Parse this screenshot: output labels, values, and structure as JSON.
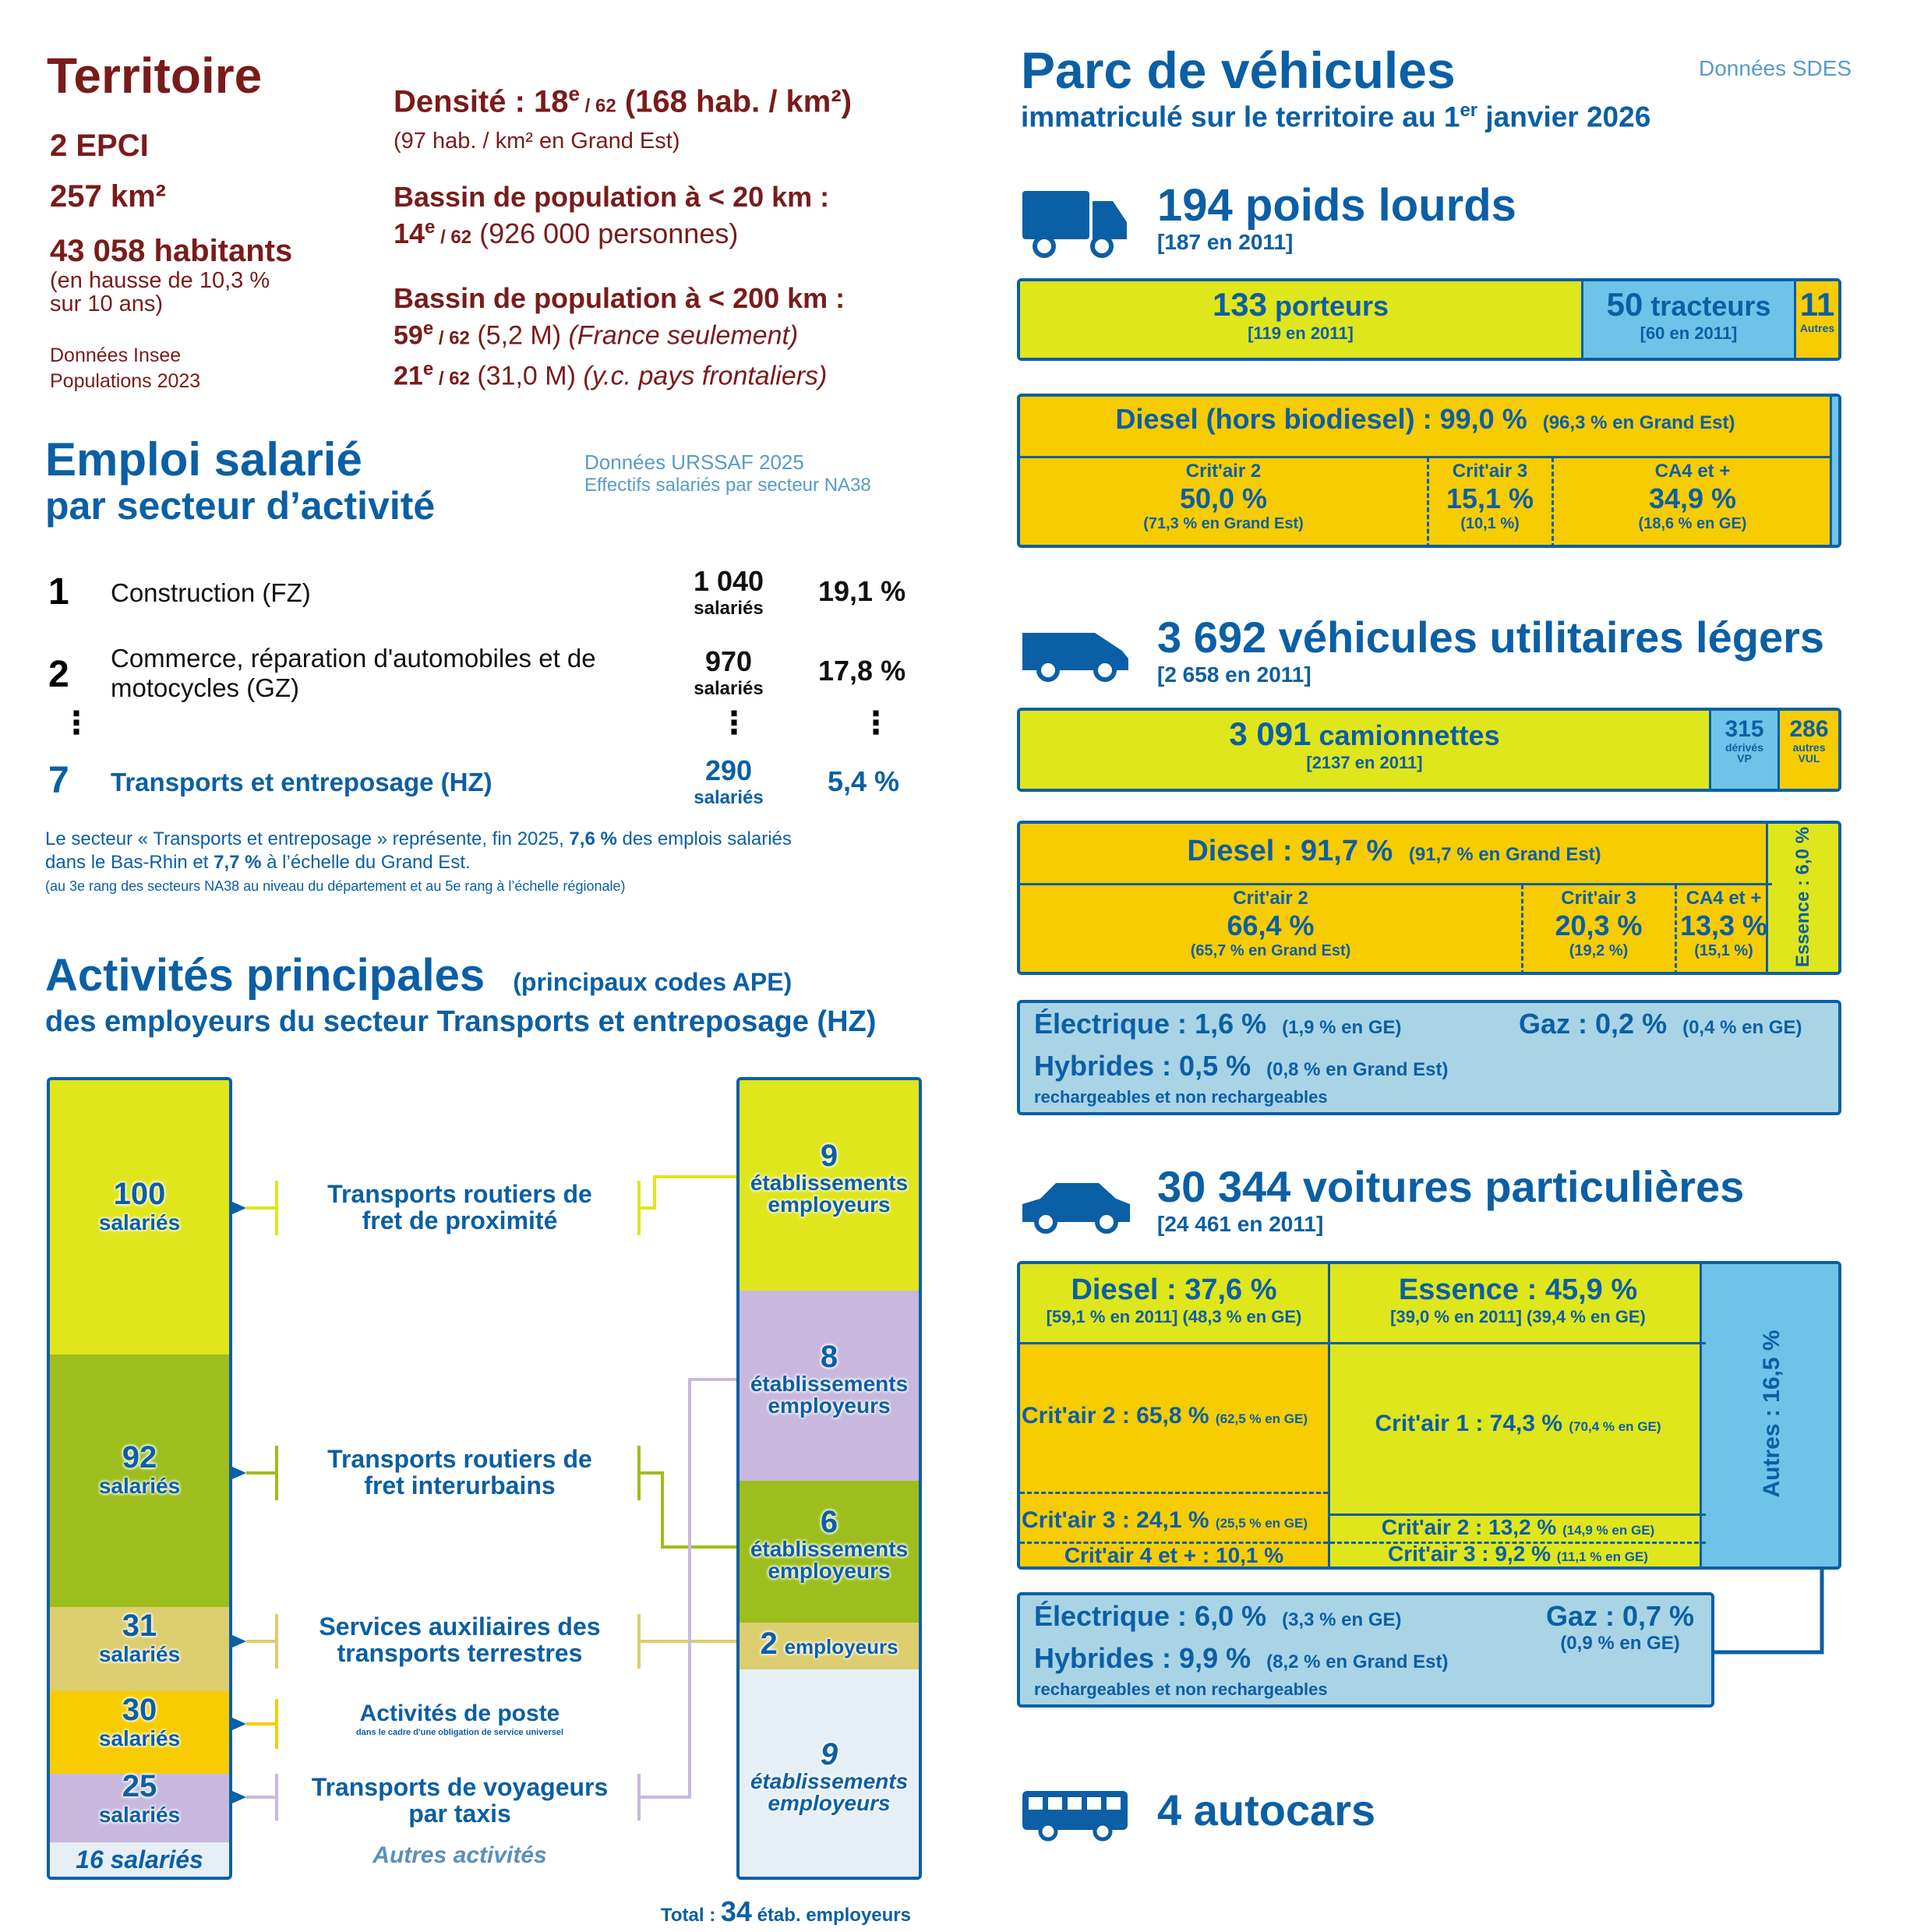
{
  "territoire": {
    "title": "Territoire",
    "epci": "2 EPCI",
    "area": "257 km²",
    "habitants": "43 058 habitants",
    "hausse_1": "(en hausse de 10,3 %",
    "hausse_2": "sur 10 ans)",
    "source_1": "Données Insee",
    "source_2": "Populations 2023",
    "densite_label": "Densité : 18",
    "densite_sup": "e",
    "densite_rank": " / 62",
    "densite_value": " (168 hab. / km²)",
    "densite_ge": "(97 hab. / km² en Grand Est)",
    "bassin20_title": "Bassin de population à < 20 km :",
    "bassin20_rank": "14",
    "bassin20_sup": "e",
    "bassin20_of": " / 62",
    "bassin20_value": " (926 000 personnes)",
    "bassin200_title": "Bassin de population à < 200 km :",
    "bassin200_rank1": "59",
    "bassin200_sup1": "e",
    "bassin200_of1": " / 62",
    "bassin200_value1": " (5,2 M) ",
    "bassin200_note1": "(France seulement)",
    "bassin200_rank2": "21",
    "bassin200_sup2": "e",
    "bassin200_of2": " / 62",
    "bassin200_value2": " (31,0 M) ",
    "bassin200_note2": "(y.c. pays frontaliers)"
  },
  "emploi": {
    "title": "Emploi salarié",
    "subtitle": "par secteur d’activité",
    "source_1": "Données URSSAF 2025",
    "source_2": "Effectifs salariés par secteur NA38",
    "rows": [
      {
        "rank": "1",
        "label": "Construction (FZ)",
        "count": "1 040",
        "unit": "salariés",
        "pct": "19,1 %"
      },
      {
        "rank": "2",
        "label": "Commerce, réparation d'automobiles et de motocycles (GZ)",
        "count": "970",
        "unit": "salariés",
        "pct": "17,8 %"
      },
      {
        "rank": "7",
        "label": "Transports et entreposage (HZ)",
        "count": "290",
        "unit": "salariés",
        "pct": "5,4 %"
      }
    ],
    "ellipsis": "⋮",
    "note_1a": "Le secteur « Transports et entreposage » représente, fin 2025, ",
    "note_1b": "7,6 %",
    "note_1c": " des emplois salariés",
    "note_2a": "dans le Bas-Rhin et ",
    "note_2b": "7,7 %",
    "note_2c": " à l’échelle du Grand Est.",
    "note_3": "(au 3e rang des secteurs NA38 au niveau du département et au 5e rang à l’échelle régionale)"
  },
  "activites": {
    "title": "Activités principales",
    "title_note": "(principaux codes APE)",
    "subtitle": "des employeurs du secteur Transports et entreposage (HZ)",
    "left": [
      {
        "value": "100",
        "unit": "salariés",
        "color": "#dfe61c"
      },
      {
        "value": "92",
        "unit": "salariés",
        "color": "#9dbe1c"
      },
      {
        "value": "31",
        "unit": "salariés",
        "color": "#dccd6e"
      },
      {
        "value": "30",
        "unit": "salariés",
        "color": "#f7cc00"
      },
      {
        "value": "25",
        "unit": "salariés",
        "color": "#c8b8dd"
      },
      {
        "value": "16 salariés",
        "color": "#e6eff6"
      }
    ],
    "labels": [
      {
        "l1": "Transports routiers de",
        "l2": "fret de proximité"
      },
      {
        "l1": "Transports routiers de",
        "l2": "fret interurbains"
      },
      {
        "l1": "Services auxiliaires des",
        "l2": "transports terrestres"
      },
      {
        "l1": "Activités de poste",
        "l2": "dans le cadre d'une obligation de service universel"
      },
      {
        "l1": "Transports de voyageurs",
        "l2": "par taxis"
      }
    ],
    "autres": "Autres activités",
    "right": [
      {
        "value": "9",
        "unit": "établissements",
        "unit2": "employeurs",
        "color": "#dfe61c"
      },
      {
        "value": "8",
        "unit": "établissements",
        "unit2": "employeurs",
        "color": "#c8b8dd"
      },
      {
        "value": "6",
        "unit": "établissements",
        "unit2": "employeurs",
        "color": "#9dbe1c"
      },
      {
        "value": "2",
        "unit": "employeurs",
        "color": "#dccd6e"
      },
      {
        "value": "9",
        "unit": "établissements",
        "unit2": "employeurs",
        "color": "#e6eff6"
      }
    ],
    "total_label": "Total : ",
    "total_value": "34",
    "total_unit": " étab. employeurs"
  },
  "parc": {
    "title": "Parc de véhicules",
    "subtitle_a": "immatriculé sur le territoire au 1",
    "subtitle_sup": "er",
    "subtitle_b": " janvier 2026",
    "source": "Données SDES",
    "pl": {
      "title": "194 poids lourds",
      "ref": "[187 en 2011]",
      "porteurs_v": "133",
      "porteurs_l": " porteurs",
      "porteurs_r": "[119 en 2011]",
      "tracteurs_v": "50",
      "tracteurs_l": " tracteurs",
      "tracteurs_r": "[60 en 2011]",
      "autres_v": "11",
      "autres_l": "Autres",
      "diesel": "Diesel (hors biodiesel) : 99,0 %",
      "diesel_ge": "(96,3 % en Grand Est)",
      "c2_l": "Crit'air 2",
      "c2_v": "50,0 %",
      "c2_ge": "(71,3 % en Grand Est)",
      "c3_l": "Crit'air 3",
      "c3_v": "15,1 %",
      "c3_ge": "(10,1 %)",
      "ca4_l": "CA4 et +",
      "ca4_v": "34,9 %",
      "ca4_ge": "(18,6 % en GE)"
    },
    "vul": {
      "title": "3 692 véhicules utilitaires légers",
      "ref": "[2 658 en 2011]",
      "cam_v": "3 091",
      "cam_l": " camionnettes",
      "cam_r": "[2137 en 2011]",
      "derives_v": "315",
      "derives_l1": "dérivés",
      "derives_l2": "VP",
      "autres_v": "286",
      "autres_l1": "autres",
      "autres_l2": "VUL",
      "diesel": "Diesel : 91,7 %",
      "diesel_ge": "(91,7 % en Grand Est)",
      "essence": "Essence : 6,0 %",
      "c2_l": "Crit'air 2",
      "c2_v": "66,4 %",
      "c2_ge": "(65,7 % en Grand Est)",
      "c3_l": "Crit'air 3",
      "c3_v": "20,3 %",
      "c3_ge": "(19,2 %)",
      "ca4_l": "CA4 et +",
      "ca4_v": "13,3 %",
      "ca4_ge": "(15,1 %)",
      "elec": "Électrique : 1,6 %",
      "elec_ge": "(1,9 % en GE)",
      "gaz": "Gaz : 0,2 %",
      "gaz_ge": "(0,4 % en GE)",
      "hyb": "Hybrides : 0,5 %",
      "hyb_ge": "(0,8 % en Grand Est)",
      "hyb_note": "rechargeables et non rechargeables"
    },
    "vp": {
      "title": "30 344 voitures particulières",
      "ref": "[24 461 en 2011]",
      "diesel": "Diesel : 37,6 %",
      "diesel_r": "[59,1 % en 2011]  (48,3 % en GE)",
      "essence": "Essence : 45,9 %",
      "essence_r": "[39,0 % en 2011]  (39,4 % en GE)",
      "autres": "Autres : 16,5 %",
      "d_c2": "Crit'air 2 : 65,8 %",
      "d_c2_ge": "(62,5 % en GE)",
      "d_c3": "Crit'air 3 : 24,1 %",
      "d_c3_ge": "(25,5 % en GE)",
      "d_c4": "Crit'air 4 et + : 10,1 %",
      "e_c1": "Crit'air 1 : 74,3 %",
      "e_c1_ge": "(70,4 % en GE)",
      "e_c2": "Crit'air 2 : 13,2 %",
      "e_c2_ge": "(14,9 % en GE)",
      "e_c3": "Crit'air 3 : 9,2 %",
      "e_c3_ge": "(11,1 % en GE)",
      "elec": "Électrique : 6,0 %",
      "elec_ge": "(3,3 % en GE)",
      "gaz": "Gaz : 0,7 %",
      "gaz_ge": "(0,9 % en GE)",
      "hyb": "Hybrides : 9,9 %",
      "hyb_ge": "(8,2 % en Grand Est)",
      "hyb_note": "rechargeables et non rechargeables"
    },
    "autocars": {
      "title": "4 autocars"
    }
  },
  "colors": {
    "maroon": "#7a1b1b",
    "blue": "#0b5fa5",
    "yellow_green": "#dfe61c",
    "gold": "#f7cc00",
    "light_blue": "#6ec3e8",
    "pale_blue": "#a9d4e6"
  },
  "icons": [
    "truck-icon",
    "van-icon",
    "car-icon",
    "bus-icon"
  ]
}
